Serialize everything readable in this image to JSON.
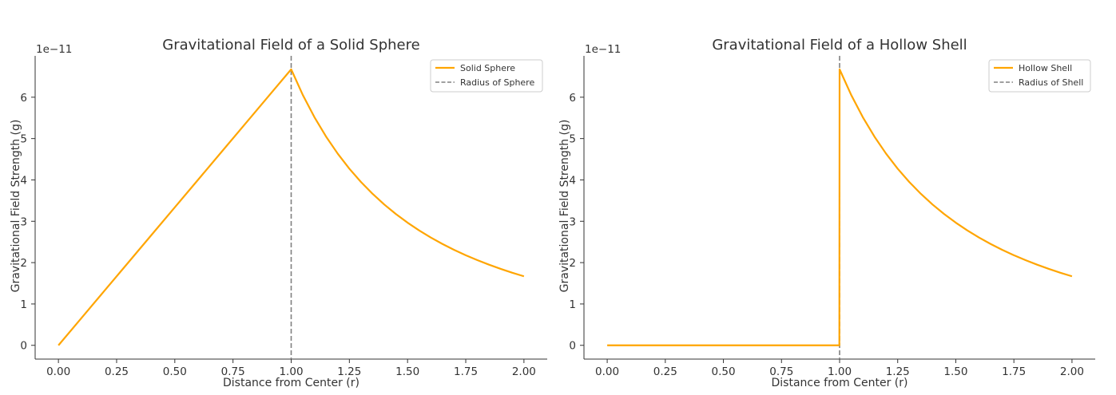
{
  "chart_data": [
    {
      "type": "line",
      "title": "Gravitational Field of a Solid Sphere",
      "xlabel": "Distance from Center (r)",
      "ylabel": "Gravitational Field Strength (g)",
      "y_scale_label": "1e−11",
      "xlim": [
        -0.1,
        2.1
      ],
      "ylim": [
        -0.333,
        7.0
      ],
      "xticks": [
        0,
        0.25,
        0.5,
        0.75,
        1.0,
        1.25,
        1.5,
        1.75,
        2.0
      ],
      "xtick_labels": [
        "0.00",
        "0.25",
        "0.50",
        "0.75",
        "1.00",
        "1.25",
        "1.50",
        "1.75",
        "2.00"
      ],
      "yticks": [
        0,
        1,
        2,
        3,
        4,
        5,
        6
      ],
      "ytick_labels": [
        "0",
        "1",
        "2",
        "3",
        "4",
        "5",
        "6"
      ],
      "legend_position": "top-right",
      "series": [
        {
          "name": "Solid Sphere",
          "color": "#ffa500",
          "x": [
            0,
            0.1,
            0.2,
            0.3,
            0.4,
            0.5,
            0.6,
            0.7,
            0.8,
            0.9,
            1.0,
            1.05,
            1.1,
            1.15,
            1.2,
            1.25,
            1.3,
            1.35,
            1.4,
            1.45,
            1.5,
            1.55,
            1.6,
            1.65,
            1.7,
            1.75,
            1.8,
            1.85,
            1.9,
            1.95,
            2.0
          ],
          "values": [
            0,
            0.667,
            1.335,
            2.002,
            2.67,
            3.337,
            4.004,
            4.672,
            5.339,
            6.007,
            6.674,
            6.053,
            5.516,
            5.047,
            4.635,
            4.271,
            3.949,
            3.662,
            3.405,
            3.174,
            2.966,
            2.778,
            2.607,
            2.451,
            2.309,
            2.179,
            2.06,
            1.95,
            1.849,
            1.755,
            1.669
          ]
        }
      ],
      "reference_line": {
        "name": "Radius of Sphere",
        "x": 1.0,
        "color": "#808080",
        "style": "dashed"
      }
    },
    {
      "type": "line",
      "title": "Gravitational Field of a Hollow Shell",
      "xlabel": "Distance from Center (r)",
      "ylabel": "Gravitational Field Strength (g)",
      "y_scale_label": "1e−11",
      "xlim": [
        -0.1,
        2.1
      ],
      "ylim": [
        -0.333,
        7.0
      ],
      "xticks": [
        0,
        0.25,
        0.5,
        0.75,
        1.0,
        1.25,
        1.5,
        1.75,
        2.0
      ],
      "xtick_labels": [
        "0.00",
        "0.25",
        "0.50",
        "0.75",
        "1.00",
        "1.25",
        "1.50",
        "1.75",
        "2.00"
      ],
      "yticks": [
        0,
        1,
        2,
        3,
        4,
        5,
        6
      ],
      "ytick_labels": [
        "0",
        "1",
        "2",
        "3",
        "4",
        "5",
        "6"
      ],
      "legend_position": "top-right",
      "series": [
        {
          "name": "Hollow Shell",
          "color": "#ffa500",
          "x": [
            0,
            0.5,
            0.999,
            1.0,
            1.05,
            1.1,
            1.15,
            1.2,
            1.25,
            1.3,
            1.35,
            1.4,
            1.45,
            1.5,
            1.55,
            1.6,
            1.65,
            1.7,
            1.75,
            1.8,
            1.85,
            1.9,
            1.95,
            2.0
          ],
          "values": [
            0,
            0,
            0,
            6.674,
            6.053,
            5.516,
            5.047,
            4.635,
            4.271,
            3.949,
            3.662,
            3.405,
            3.174,
            2.966,
            2.778,
            2.607,
            2.451,
            2.309,
            2.179,
            2.06,
            1.95,
            1.849,
            1.755,
            1.669
          ]
        }
      ],
      "reference_line": {
        "name": "Radius of Shell",
        "x": 1.0,
        "color": "#808080",
        "style": "dashed"
      }
    }
  ]
}
